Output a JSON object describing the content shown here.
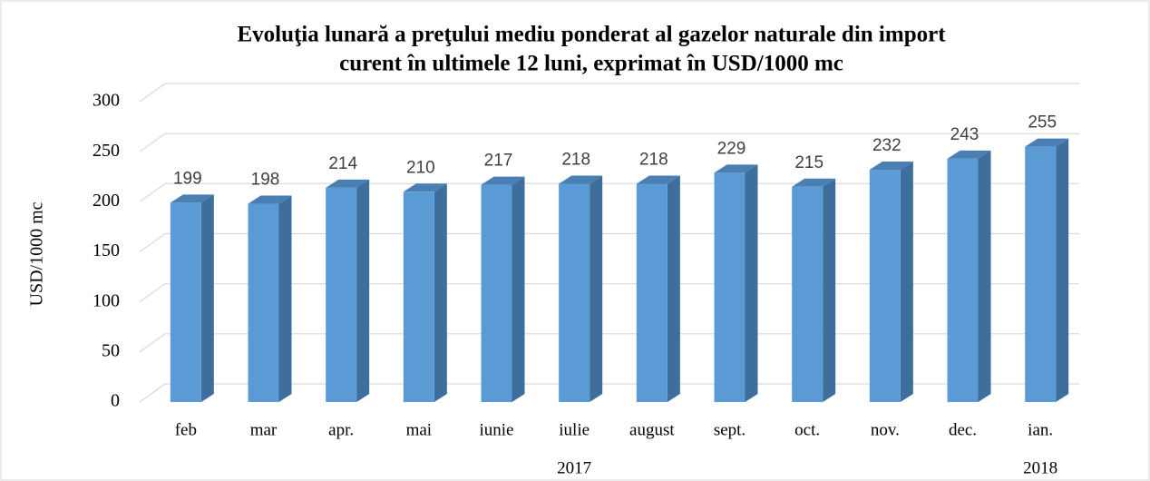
{
  "chart_data": {
    "type": "bar",
    "title": [
      "Evoluţia lunară a preţului mediu ponderat al gazelor naturale din import",
      "curent în ultimele 12 luni, exprimat în USD/1000 mc"
    ],
    "y_label": "USD/1000 mc",
    "categories": [
      "feb",
      "mar",
      "apr.",
      "mai",
      "iunie",
      "iulie",
      "august",
      "sept.",
      "oct.",
      "nov.",
      "dec.",
      "ian."
    ],
    "groups": [
      "2017",
      "2018"
    ],
    "values": [
      199,
      198,
      214,
      210,
      217,
      218,
      218,
      229,
      215,
      232,
      243,
      255
    ],
    "color": "#5b9bd5",
    "ylim": [
      0,
      300
    ],
    "yticks": [
      0,
      50,
      100,
      150,
      200,
      250,
      300
    ],
    "grid": true
  }
}
